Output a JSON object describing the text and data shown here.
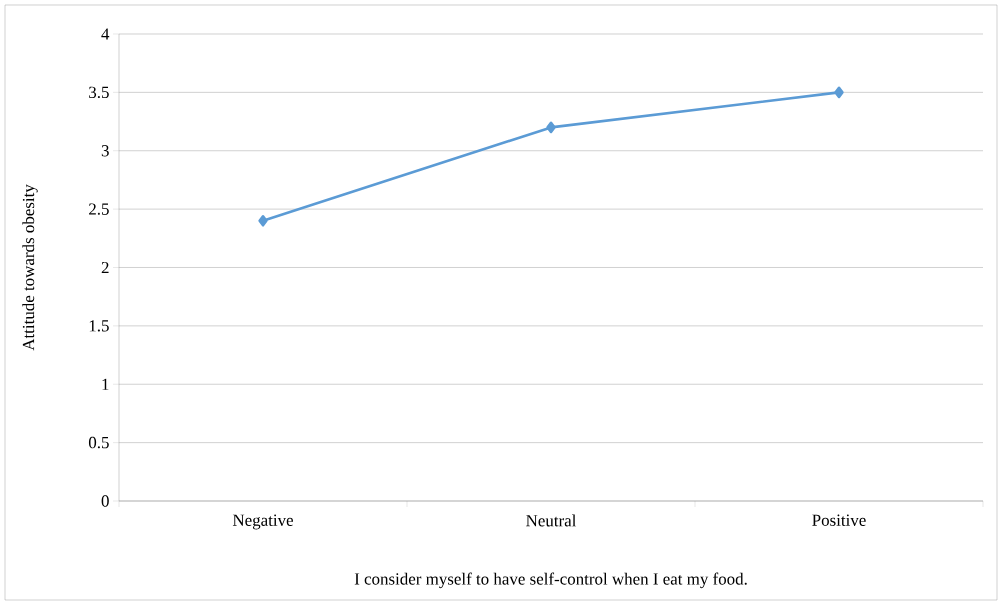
{
  "chart_data": {
    "type": "line",
    "xlabel": "I consider myself to have self-control when I eat my food.",
    "ylabel": "Attitude towards obesity",
    "categories": [
      "Negative",
      "Neutral",
      "Positive"
    ],
    "series": [
      {
        "color": "#5b9bd5",
        "values": [
          2.4,
          3.2,
          3.5
        ]
      }
    ],
    "ylim": [
      0,
      4
    ],
    "yticks": [
      0,
      0.5,
      1,
      1.5,
      2,
      2.5,
      3,
      3.5,
      4
    ],
    "grid": "y",
    "marker": "diamond",
    "line_style": "solid"
  }
}
